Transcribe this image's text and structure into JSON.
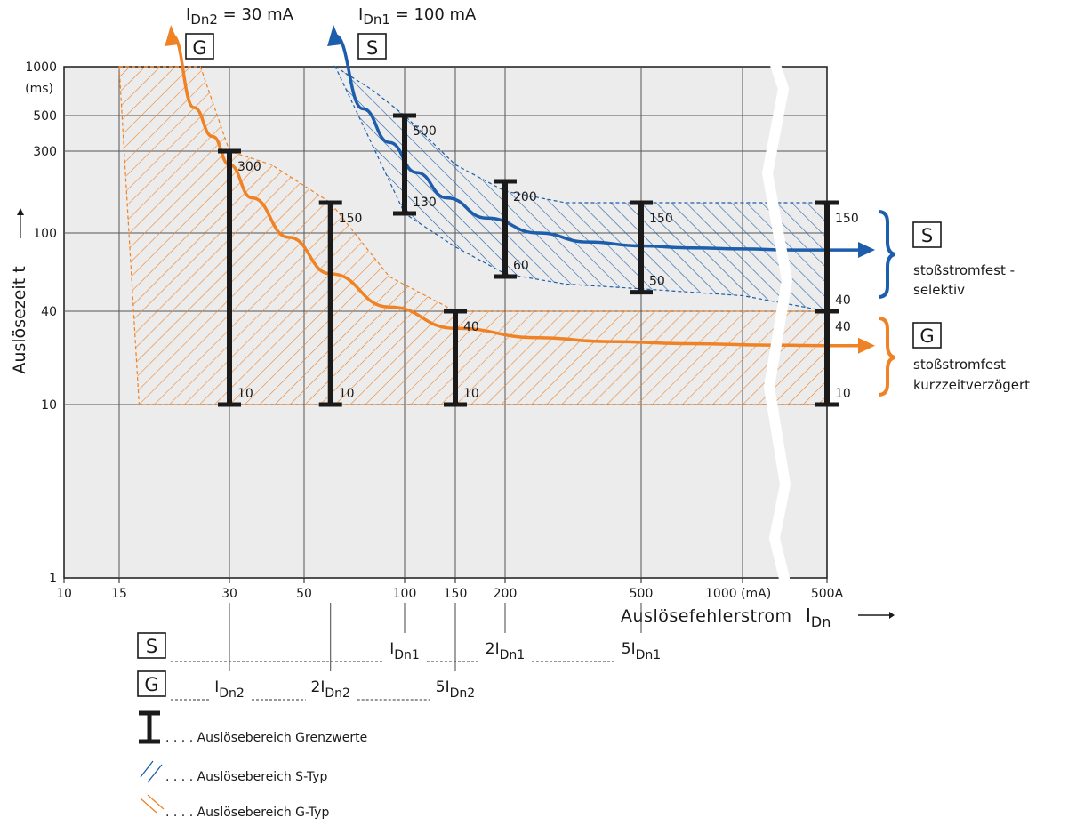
{
  "chart_data": {
    "type": "line",
    "title": "",
    "xlabel": "Auslösefehlerstrom",
    "xlabel_symbol": "I",
    "xlabel_symbol_sub": "Dn",
    "ylabel": "Auslösezeit  t",
    "x_scale": "log",
    "y_scale": "log",
    "xlim": [
      10,
      3000
    ],
    "ylim": [
      1,
      1000
    ],
    "grid": true,
    "x_ticks": [
      {
        "value": 10,
        "label": "10"
      },
      {
        "value": 15,
        "label": "15"
      },
      {
        "value": 30,
        "label": "30"
      },
      {
        "value": 50,
        "label": "50"
      },
      {
        "value": 100,
        "label": "100"
      },
      {
        "value": 150,
        "label": "150"
      },
      {
        "value": 200,
        "label": "200"
      },
      {
        "value": 500,
        "label": "500"
      },
      {
        "value": 1000,
        "label": "1000 (mA)"
      },
      {
        "value": 2200,
        "label": "500A"
      }
    ],
    "y_ticks": [
      {
        "value": 1,
        "label": "1"
      },
      {
        "value": 10,
        "label": "10"
      },
      {
        "value": 40,
        "label": "40"
      },
      {
        "value": 100,
        "label": "100"
      },
      {
        "value": 300,
        "label": "300"
      },
      {
        "value": 500,
        "label": "500"
      },
      {
        "value": 1000,
        "label": "1000"
      }
    ],
    "y_unit_label": "(ms)",
    "axis_break_x": 1300,
    "colors": {
      "s_type": "#1c5eab",
      "g_type": "#f08226",
      "limits": "#1a1a1a",
      "plot_bg": "#ececec"
    },
    "series": [
      {
        "name": "I_Dn1 = 100 mA",
        "type_box": "S",
        "color": "#1c5eab",
        "x": [
          62,
          75,
          90,
          110,
          140,
          180,
          250,
          350,
          500,
          700,
          1000,
          1500,
          2200
        ],
        "y": [
          1000,
          550,
          340,
          225,
          160,
          122,
          100,
          90,
          86,
          84,
          83,
          82,
          82
        ]
      },
      {
        "name": "I_Dn2 = 30 mA",
        "type_box": "G",
        "color": "#f08226",
        "x": [
          21,
          24,
          27,
          30,
          35,
          45,
          60,
          90,
          150,
          250,
          400,
          700,
          1200,
          2200
        ],
        "y": [
          1000,
          560,
          370,
          250,
          160,
          95,
          62,
          42,
          31,
          27,
          25.5,
          24.7,
          24.2,
          24
        ]
      }
    ],
    "bands": [
      {
        "name": "Auslösebereich S-Typ",
        "color": "#1c5eab",
        "upper": {
          "x": [
            62,
            80,
            100,
            150,
            200,
            300,
            500,
            1000,
            2200
          ],
          "y": [
            1000,
            720,
            500,
            250,
            175,
            150,
            150,
            150,
            150
          ]
        },
        "lower": {
          "x": [
            100,
            150,
            200,
            300,
            500,
            1000,
            2200
          ],
          "y": [
            130,
            85,
            62,
            55,
            52,
            48,
            40
          ]
        }
      },
      {
        "name": "Auslösebereich G-Typ",
        "color": "#f08226",
        "upper": {
          "x": [
            15,
            25,
            30,
            40,
            60,
            90,
            150,
            2200
          ],
          "y": [
            1000,
            1000,
            300,
            250,
            150,
            60,
            40,
            40
          ]
        },
        "lower": {
          "x": [
            15,
            17,
            2200
          ],
          "y": [
            1000,
            10,
            10
          ]
        }
      }
    ],
    "limit_bars": [
      {
        "x": 30,
        "min": 10,
        "max": 300,
        "min_label": "10",
        "max_label": "300"
      },
      {
        "x": 60,
        "min": 10,
        "max": 150,
        "min_label": "10",
        "max_label": "150"
      },
      {
        "x": 100,
        "min": 130,
        "max": 500,
        "min_label": "130",
        "max_label": "500"
      },
      {
        "x": 150,
        "min": 10,
        "max": 40,
        "min_label": "10",
        "max_label": "40"
      },
      {
        "x": 200,
        "min": 60,
        "max": 200,
        "min_label": "60",
        "max_label": "200"
      },
      {
        "x": 500,
        "min": 50,
        "max": 150,
        "min_label": "50",
        "max_label": "150"
      },
      {
        "x": 2200,
        "min": 40,
        "max": 150,
        "min_label": "40",
        "max_label": "150"
      },
      {
        "x": 2200,
        "min": 10,
        "max": 40,
        "min_label": "10",
        "max_label": "40"
      }
    ],
    "series_labels": [
      {
        "box": "G",
        "prefix": "I",
        "sub": "Dn2",
        "rest": " = 30 mA"
      },
      {
        "box": "S",
        "prefix": "I",
        "sub": "Dn1",
        "rest": " = 100 mA"
      }
    ],
    "right_annotations": [
      {
        "box": "S",
        "lines": [
          "stoßstromfest -",
          "selektiv"
        ]
      },
      {
        "box": "G",
        "lines": [
          "stoßstromfest",
          "kurzzeitverzögert"
        ]
      }
    ],
    "multiples": {
      "S": {
        "box": "S",
        "items": [
          {
            "x": 100,
            "prefix": "",
            "sub": "Dn1",
            "label": "I"
          },
          {
            "x": 200,
            "prefix": "2",
            "sub": "Dn1",
            "label": "I"
          },
          {
            "x": 500,
            "prefix": "5",
            "sub": "Dn1",
            "label": "I"
          }
        ]
      },
      "G": {
        "box": "G",
        "items": [
          {
            "x": 30,
            "prefix": "",
            "sub": "Dn2",
            "label": "I"
          },
          {
            "x": 60,
            "prefix": "2",
            "sub": "Dn2",
            "label": "I"
          },
          {
            "x": 150,
            "prefix": "5",
            "sub": "Dn2",
            "label": "I"
          }
        ]
      }
    },
    "legend": [
      {
        "symbol": "limit-bar",
        "text": ". . . . Auslösebereich Grenzwerte"
      },
      {
        "symbol": "s-hatch",
        "text": ". . . . Auslösebereich S-Typ"
      },
      {
        "symbol": "g-hatch",
        "text": ". . . . Auslösebereich G-Typ"
      }
    ]
  }
}
